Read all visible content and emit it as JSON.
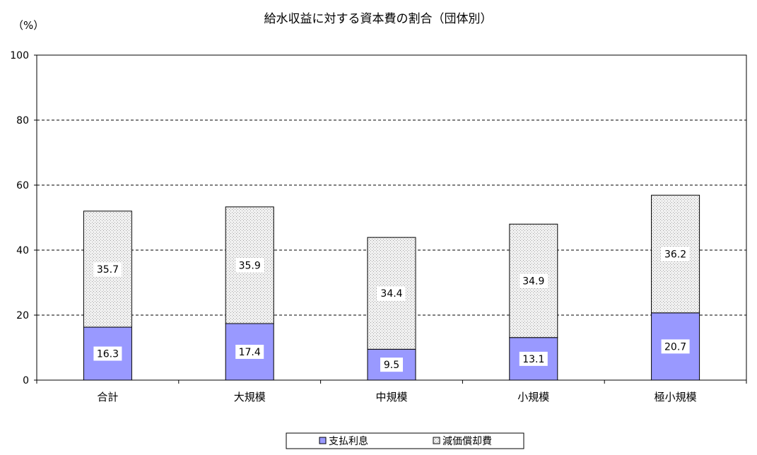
{
  "chart_data": {
    "type": "bar",
    "stacked": true,
    "title": "給水収益に対する資本費の割合（団体別）",
    "yunit": "（%）",
    "ylim": [
      0,
      100
    ],
    "yticks": [
      0,
      20,
      40,
      60,
      80,
      100
    ],
    "grid": true,
    "legend_position": "bottom",
    "categories": [
      "合計",
      "大規模",
      "中規模",
      "小規模",
      "極小規模"
    ],
    "series": [
      {
        "name": "支払利息",
        "values": [
          16.3,
          17.4,
          9.5,
          13.1,
          20.7
        ],
        "color": "#9999ff",
        "pattern": "solid"
      },
      {
        "name": "減価償却費",
        "values": [
          35.7,
          35.9,
          34.4,
          34.9,
          36.2
        ],
        "color": "#c0c0c0",
        "pattern": "crosshatch"
      }
    ]
  }
}
